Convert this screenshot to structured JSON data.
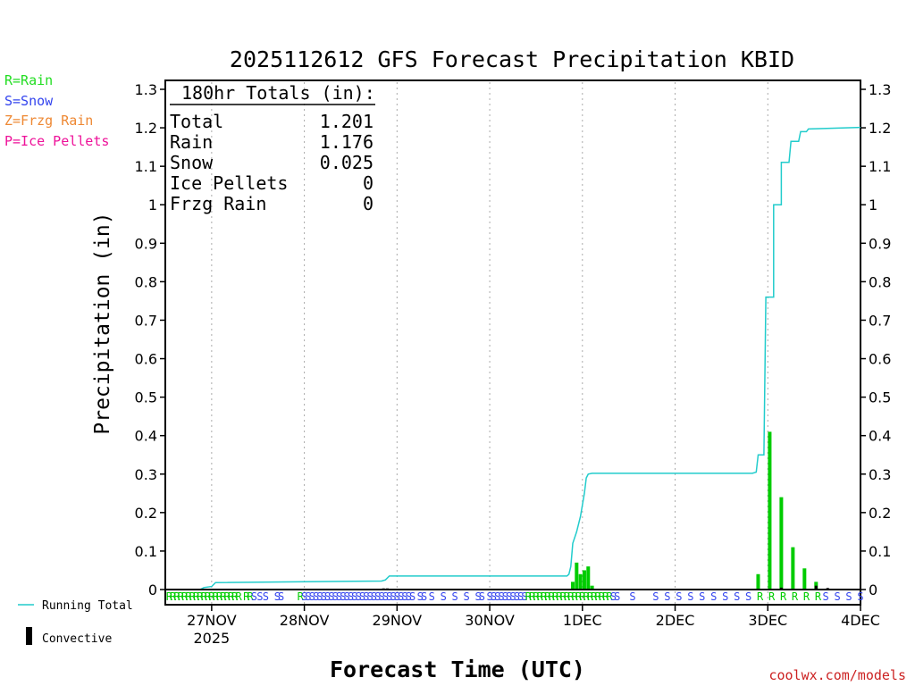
{
  "chart_data": {
    "type": "bar+line",
    "title": "2025112612 GFS Forecast Precipitation KBID",
    "ylabel": "Precipitation (in)",
    "xlabel": "Forecast Time (UTC)",
    "credit": "coolwx.com/models",
    "ylim": [
      0,
      1.3
    ],
    "yticks": [
      "0",
      "0.1",
      "0.2",
      "0.3",
      "0.4",
      "0.5",
      "0.6",
      "0.7",
      "0.8",
      "0.9",
      "1",
      "1.1",
      "1.2",
      "1.3"
    ],
    "xlim_hours": [
      0,
      180
    ],
    "xticks": [
      {
        "label": "27NOV",
        "sub": "2025",
        "hour": 12
      },
      {
        "label": "28NOV",
        "sub": "",
        "hour": 36
      },
      {
        "label": "29NOV",
        "sub": "",
        "hour": 60
      },
      {
        "label": "30NOV",
        "sub": "",
        "hour": 84
      },
      {
        "label": "1DEC",
        "sub": "",
        "hour": 108
      },
      {
        "label": "2DEC",
        "sub": "",
        "hour": 132
      },
      {
        "label": "3DEC",
        "sub": "",
        "hour": 156
      },
      {
        "label": "4DEC",
        "sub": "",
        "hour": 180
      }
    ],
    "type_legend": [
      {
        "text": "R=Rain",
        "color": "#22dd22"
      },
      {
        "text": "S=Snow",
        "color": "#3344ee"
      },
      {
        "text": "Z=Frzg Rain",
        "color": "#ee8833"
      },
      {
        "text": "P=Ice Pellets",
        "color": "#ee1199"
      }
    ],
    "totals_box": {
      "header": "180hr Totals (in):",
      "rows": [
        {
          "label": "Total",
          "value": "1.201"
        },
        {
          "label": "Rain",
          "value": "1.176"
        },
        {
          "label": "Snow",
          "value": "0.025"
        },
        {
          "label": "Ice Pellets",
          "value": "0"
        },
        {
          "label": "Frzg Rain",
          "value": "0"
        }
      ]
    },
    "series_legend": {
      "running_total": "Running Total",
      "convective": "Convective"
    },
    "colors": {
      "running_total": "#22cccc",
      "rain": "#00cc00",
      "snow": "#3344ee",
      "convective": "#000000",
      "grid": "#aaaaaa"
    },
    "running_total": [
      [
        0,
        0
      ],
      [
        9,
        0
      ],
      [
        10,
        0.005
      ],
      [
        12,
        0.008
      ],
      [
        13,
        0.018
      ],
      [
        56,
        0.022
      ],
      [
        57,
        0.025
      ],
      [
        58,
        0.035
      ],
      [
        104,
        0.035
      ],
      [
        104.5,
        0.04
      ],
      [
        105,
        0.06
      ],
      [
        105.5,
        0.12
      ],
      [
        106.5,
        0.15
      ],
      [
        107.5,
        0.19
      ],
      [
        108.5,
        0.25
      ],
      [
        109,
        0.29
      ],
      [
        109.5,
        0.3
      ],
      [
        110.5,
        0.302
      ],
      [
        152,
        0.302
      ],
      [
        153,
        0.305
      ],
      [
        153.5,
        0.35
      ],
      [
        155,
        0.35
      ],
      [
        155.5,
        0.76
      ],
      [
        157.5,
        0.76
      ],
      [
        157.5,
        1.0
      ],
      [
        159.5,
        1.0
      ],
      [
        159.5,
        1.11
      ],
      [
        161.5,
        1.11
      ],
      [
        162,
        1.165
      ],
      [
        164,
        1.165
      ],
      [
        164.5,
        1.19
      ],
      [
        166,
        1.19
      ],
      [
        166.5,
        1.197
      ],
      [
        180,
        1.201
      ]
    ],
    "bars_rain": [
      [
        105.5,
        0.02
      ],
      [
        106.5,
        0.07
      ],
      [
        107.5,
        0.04
      ],
      [
        108.5,
        0.05
      ],
      [
        109.5,
        0.06
      ],
      [
        110.5,
        0.01
      ],
      [
        153.5,
        0.04
      ],
      [
        156.5,
        0.41
      ],
      [
        159.5,
        0.24
      ],
      [
        162.5,
        0.11
      ],
      [
        165.5,
        0.055
      ],
      [
        168.5,
        0.02
      ]
    ],
    "bars_convective": [
      [
        56.5,
        0.003
      ],
      [
        57.5,
        0.003
      ],
      [
        159.5,
        0.005
      ],
      [
        168.5,
        0.01
      ],
      [
        171.5,
        0.004
      ]
    ],
    "ptype_strip": [
      {
        "hour": 1,
        "t": "R"
      },
      {
        "hour": 2,
        "t": "R"
      },
      {
        "hour": 3,
        "t": "R"
      },
      {
        "hour": 4,
        "t": "R"
      },
      {
        "hour": 5,
        "t": "R"
      },
      {
        "hour": 6,
        "t": "R"
      },
      {
        "hour": 7,
        "t": "R"
      },
      {
        "hour": 8,
        "t": "R"
      },
      {
        "hour": 9,
        "t": "R"
      },
      {
        "hour": 10,
        "t": "R"
      },
      {
        "hour": 11,
        "t": "R"
      },
      {
        "hour": 12,
        "t": "R"
      },
      {
        "hour": 13,
        "t": "R"
      },
      {
        "hour": 14,
        "t": "R"
      },
      {
        "hour": 15,
        "t": "R"
      },
      {
        "hour": 16,
        "t": "R"
      },
      {
        "hour": 17,
        "t": "R"
      },
      {
        "hour": 18,
        "t": "R"
      },
      {
        "hour": 19,
        "t": "R"
      },
      {
        "hour": 21,
        "t": "R"
      },
      {
        "hour": 22,
        "t": "R"
      },
      {
        "hour": 23,
        "t": "S"
      },
      {
        "hour": 24.5,
        "t": "S"
      },
      {
        "hour": 26,
        "t": "S"
      },
      {
        "hour": 29,
        "t": "S"
      },
      {
        "hour": 30,
        "t": "S"
      },
      {
        "hour": 35,
        "t": "R"
      },
      {
        "hour": 36,
        "t": "S"
      },
      {
        "hour": 37,
        "t": "S"
      },
      {
        "hour": 38,
        "t": "S"
      },
      {
        "hour": 39,
        "t": "S"
      },
      {
        "hour": 40,
        "t": "S"
      },
      {
        "hour": 41,
        "t": "S"
      },
      {
        "hour": 42,
        "t": "S"
      },
      {
        "hour": 43,
        "t": "S"
      },
      {
        "hour": 44,
        "t": "S"
      },
      {
        "hour": 45,
        "t": "S"
      },
      {
        "hour": 46,
        "t": "S"
      },
      {
        "hour": 47,
        "t": "S"
      },
      {
        "hour": 48,
        "t": "S"
      },
      {
        "hour": 49,
        "t": "S"
      },
      {
        "hour": 50,
        "t": "S"
      },
      {
        "hour": 51,
        "t": "S"
      },
      {
        "hour": 52,
        "t": "S"
      },
      {
        "hour": 53,
        "t": "S"
      },
      {
        "hour": 54,
        "t": "S"
      },
      {
        "hour": 55,
        "t": "S"
      },
      {
        "hour": 56,
        "t": "S"
      },
      {
        "hour": 57,
        "t": "S"
      },
      {
        "hour": 58,
        "t": "S"
      },
      {
        "hour": 59,
        "t": "S"
      },
      {
        "hour": 60,
        "t": "S"
      },
      {
        "hour": 61,
        "t": "S"
      },
      {
        "hour": 62,
        "t": "S"
      },
      {
        "hour": 63,
        "t": "S"
      },
      {
        "hour": 64,
        "t": "S"
      },
      {
        "hour": 66,
        "t": "S"
      },
      {
        "hour": 67,
        "t": "S"
      },
      {
        "hour": 69,
        "t": "S"
      },
      {
        "hour": 72,
        "t": "S"
      },
      {
        "hour": 75,
        "t": "S"
      },
      {
        "hour": 78,
        "t": "S"
      },
      {
        "hour": 81,
        "t": "S"
      },
      {
        "hour": 82,
        "t": "S"
      },
      {
        "hour": 84,
        "t": "S"
      },
      {
        "hour": 85,
        "t": "S"
      },
      {
        "hour": 86,
        "t": "S"
      },
      {
        "hour": 87,
        "t": "S"
      },
      {
        "hour": 88,
        "t": "S"
      },
      {
        "hour": 89,
        "t": "S"
      },
      {
        "hour": 90,
        "t": "S"
      },
      {
        "hour": 91,
        "t": "S"
      },
      {
        "hour": 92,
        "t": "S"
      },
      {
        "hour": 93,
        "t": "S"
      },
      {
        "hour": 94,
        "t": "R"
      },
      {
        "hour": 95,
        "t": "R"
      },
      {
        "hour": 96,
        "t": "R"
      },
      {
        "hour": 97,
        "t": "R"
      },
      {
        "hour": 98,
        "t": "R"
      },
      {
        "hour": 99,
        "t": "R"
      },
      {
        "hour": 100,
        "t": "R"
      },
      {
        "hour": 101,
        "t": "R"
      },
      {
        "hour": 102,
        "t": "R"
      },
      {
        "hour": 103,
        "t": "R"
      },
      {
        "hour": 104,
        "t": "R"
      },
      {
        "hour": 105,
        "t": "R"
      },
      {
        "hour": 106,
        "t": "R"
      },
      {
        "hour": 107,
        "t": "R"
      },
      {
        "hour": 108,
        "t": "R"
      },
      {
        "hour": 109,
        "t": "R"
      },
      {
        "hour": 110,
        "t": "R"
      },
      {
        "hour": 111,
        "t": "R"
      },
      {
        "hour": 112,
        "t": "R"
      },
      {
        "hour": 113,
        "t": "R"
      },
      {
        "hour": 114,
        "t": "R"
      },
      {
        "hour": 115,
        "t": "R"
      },
      {
        "hour": 116,
        "t": "S"
      },
      {
        "hour": 117,
        "t": "S"
      },
      {
        "hour": 121,
        "t": "S"
      },
      {
        "hour": 127,
        "t": "S"
      },
      {
        "hour": 130,
        "t": "S"
      },
      {
        "hour": 133,
        "t": "S"
      },
      {
        "hour": 136,
        "t": "S"
      },
      {
        "hour": 139,
        "t": "S"
      },
      {
        "hour": 142,
        "t": "S"
      },
      {
        "hour": 145,
        "t": "S"
      },
      {
        "hour": 148,
        "t": "S"
      },
      {
        "hour": 151,
        "t": "S"
      },
      {
        "hour": 154,
        "t": "R"
      },
      {
        "hour": 157,
        "t": "R"
      },
      {
        "hour": 160,
        "t": "R"
      },
      {
        "hour": 163,
        "t": "R"
      },
      {
        "hour": 166,
        "t": "R"
      },
      {
        "hour": 169,
        "t": "R"
      },
      {
        "hour": 171,
        "t": "S"
      },
      {
        "hour": 174,
        "t": "S"
      },
      {
        "hour": 177,
        "t": "S"
      },
      {
        "hour": 180,
        "t": "S"
      }
    ]
  }
}
